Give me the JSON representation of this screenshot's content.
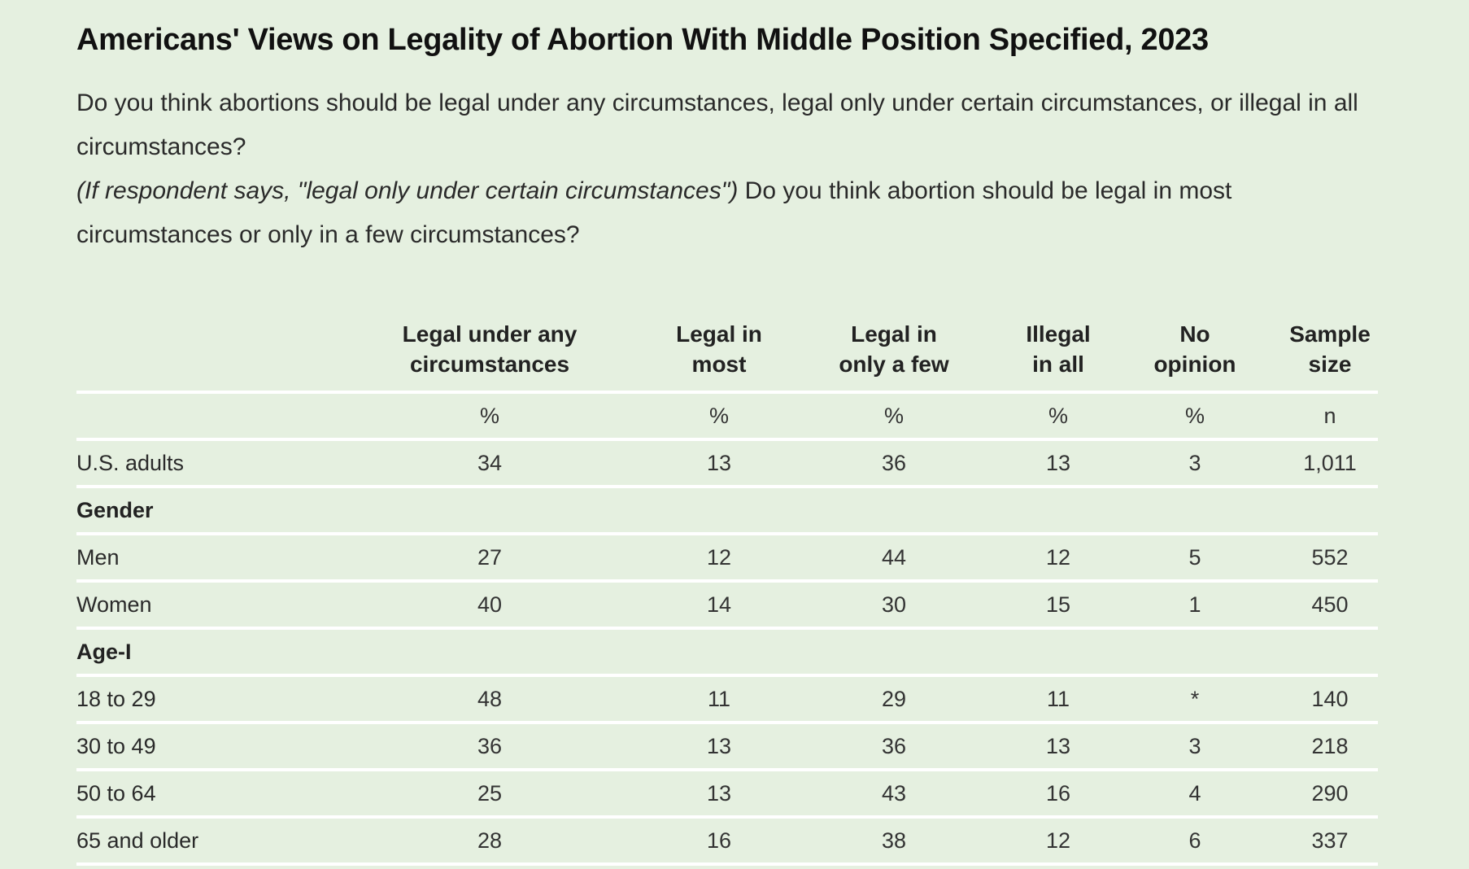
{
  "title": "Americans' Views on Legality of Abortion With Middle Position Specified, 2023",
  "question": {
    "line1": "Do you think abortions should be legal under any circumstances, legal only under certain circumstances, or illegal in all circumstances?",
    "followup_condition": "(If respondent says, \"legal only under certain circumstances\")",
    "followup_question": " Do you think abortion should be legal in most circumstances or only in a few circumstances?"
  },
  "table": {
    "columns": [
      {
        "line1": "Legal under any",
        "line2": "circumstances",
        "unit": "%"
      },
      {
        "line1": "Legal in",
        "line2": "most",
        "unit": "%"
      },
      {
        "line1": "Legal in",
        "line2": "only a few",
        "unit": "%"
      },
      {
        "line1": "Illegal",
        "line2": "in all",
        "unit": "%"
      },
      {
        "line1": "No",
        "line2": "opinion",
        "unit": "%"
      },
      {
        "line1": "Sample",
        "line2": "size",
        "unit": "n"
      }
    ],
    "rows": [
      {
        "label": "U.S. adults",
        "values": [
          "34",
          "13",
          "36",
          "13",
          "3",
          "1,011"
        ]
      },
      {
        "label": "Gender",
        "group": true
      },
      {
        "label": "Men",
        "values": [
          "27",
          "12",
          "44",
          "12",
          "5",
          "552"
        ]
      },
      {
        "label": "Women",
        "values": [
          "40",
          "14",
          "30",
          "15",
          "1",
          "450"
        ]
      },
      {
        "label": "Age-I",
        "group": true
      },
      {
        "label": "18 to 29",
        "values": [
          "48",
          "11",
          "29",
          "11",
          "*",
          "140"
        ]
      },
      {
        "label": "30 to 49",
        "values": [
          "36",
          "13",
          "36",
          "13",
          "3",
          "218"
        ]
      },
      {
        "label": "50 to 64",
        "values": [
          "25",
          "13",
          "43",
          "16",
          "4",
          "290"
        ]
      },
      {
        "label": "65 and older",
        "values": [
          "28",
          "16",
          "38",
          "12",
          "6",
          "337"
        ]
      }
    ]
  }
}
